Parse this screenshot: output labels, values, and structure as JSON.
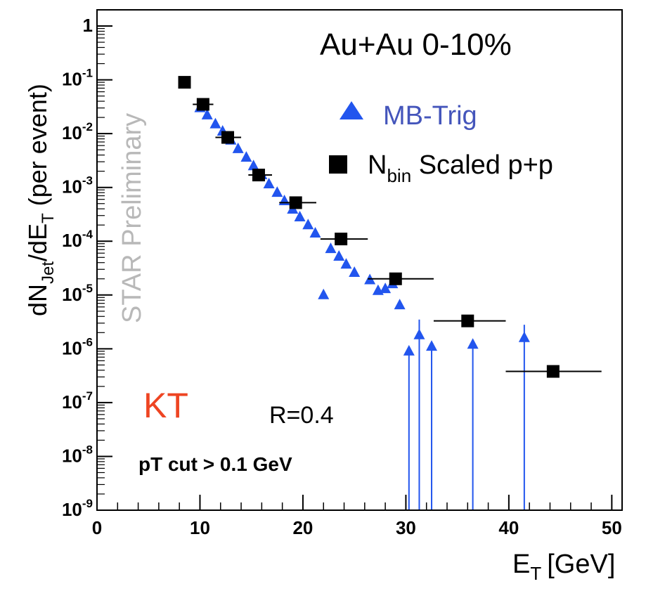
{
  "chart_data": {
    "type": "scatter",
    "title": "Au+Au 0-10%",
    "xlabel_main": "E",
    "xlabel_sub": "T",
    "xlabel_unit": "[GeV]",
    "ylabel_parts": {
      "a": "dN",
      "a_sub": "Jet",
      "b": "/dE",
      "b_sub": "T",
      "c": " (per event)"
    },
    "x_range": [
      0,
      51
    ],
    "y_range": [
      1e-09,
      2
    ],
    "y_scale": "log",
    "x_ticks": [
      0,
      10,
      20,
      30,
      40,
      50
    ],
    "y_tick_exponents": [
      0,
      -1,
      -2,
      -3,
      -4,
      -5,
      -6,
      -7,
      -8,
      -9
    ],
    "annotations": {
      "watermark": "STAR Preliminary",
      "algorithm": "KT",
      "radius": "R=0.4",
      "cut": "pT cut > 0.1 GeV"
    },
    "legend": {
      "position": "top-right",
      "mb_label": "MB-Trig",
      "pp_label_main": "N",
      "pp_label_sub": "bin",
      "pp_label_rest": " Scaled p+p"
    },
    "colors": {
      "mb": "#2255ee",
      "mb_legend": "#4455bb",
      "pp": "#000000",
      "kt": "#ee4422",
      "watermark": "#b8b8b8"
    },
    "series": [
      {
        "id": "mb",
        "marker": "triangle",
        "points": [
          {
            "x": 10.0,
            "y": 0.03
          },
          {
            "x": 10.7,
            "y": 0.022
          },
          {
            "x": 11.5,
            "y": 0.015
          },
          {
            "x": 12.2,
            "y": 0.011
          },
          {
            "x": 13.0,
            "y": 0.0075
          },
          {
            "x": 13.7,
            "y": 0.0052
          },
          {
            "x": 14.5,
            "y": 0.0036
          },
          {
            "x": 15.2,
            "y": 0.0025
          },
          {
            "x": 16.0,
            "y": 0.0017
          },
          {
            "x": 16.7,
            "y": 0.00115
          },
          {
            "x": 17.5,
            "y": 0.0008
          },
          {
            "x": 18.2,
            "y": 0.00056
          },
          {
            "x": 19.0,
            "y": 0.00039
          },
          {
            "x": 19.7,
            "y": 0.00028
          },
          {
            "x": 20.5,
            "y": 0.0002
          },
          {
            "x": 21.2,
            "y": 0.00014
          },
          {
            "x": 22.0,
            "y": 1e-05
          },
          {
            "x": 22.7,
            "y": 7.2e-05
          },
          {
            "x": 23.5,
            "y": 5.2e-05
          },
          {
            "x": 24.2,
            "y": 3.7e-05
          },
          {
            "x": 25.0,
            "y": 2.6e-05
          },
          {
            "x": 26.5,
            "y": 1.9e-05
          },
          {
            "x": 27.3,
            "y": 1.2e-05
          },
          {
            "x": 28.0,
            "y": 1.3e-05
          },
          {
            "x": 28.7,
            "y": 1.6e-05
          },
          {
            "x": 29.4,
            "y": 6.5e-06
          },
          {
            "x": 30.3,
            "y": 9e-07,
            "err_low_to_axis": true
          },
          {
            "x": 31.3,
            "y": 1.8e-06,
            "err_high": 3.5e-06,
            "err_low_to_axis": true
          },
          {
            "x": 32.5,
            "y": 1.1e-06,
            "err_low_to_axis": true
          },
          {
            "x": 36.5,
            "y": 1.2e-06,
            "err_low_to_axis": true
          },
          {
            "x": 41.5,
            "y": 1.6e-06,
            "err_high": 2.8e-06,
            "err_low_to_axis": true
          }
        ]
      },
      {
        "id": "pp",
        "marker": "square",
        "points": [
          {
            "x": 8.5,
            "y": 0.09,
            "xerr": [
              8.3,
              8.7
            ]
          },
          {
            "x": 10.3,
            "y": 0.035,
            "xerr": [
              9.3,
              11.3
            ]
          },
          {
            "x": 12.7,
            "y": 0.0085,
            "xerr": [
              11.5,
              14.0
            ]
          },
          {
            "x": 15.7,
            "y": 0.0017,
            "xerr": [
              14.7,
              17.0
            ]
          },
          {
            "x": 19.3,
            "y": 0.00052,
            "xerr": [
              17.7,
              21.3
            ]
          },
          {
            "x": 23.7,
            "y": 0.00011,
            "xerr": [
              21.7,
              26.3
            ]
          },
          {
            "x": 29.0,
            "y": 2e-05,
            "xerr": [
              26.3,
              32.7
            ]
          },
          {
            "x": 36.0,
            "y": 3.3e-06,
            "xerr": [
              32.7,
              39.7
            ]
          },
          {
            "x": 44.3,
            "y": 3.8e-07,
            "xerr": [
              39.7,
              49.0
            ]
          }
        ]
      }
    ]
  }
}
